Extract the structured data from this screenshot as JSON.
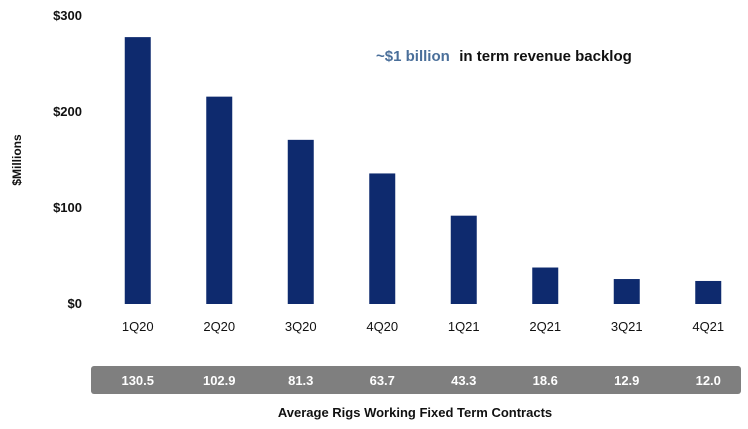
{
  "chart_data": {
    "type": "bar",
    "categories": [
      "1Q20",
      "2Q20",
      "3Q20",
      "4Q20",
      "1Q21",
      "2Q21",
      "3Q21",
      "4Q21"
    ],
    "values": [
      278,
      216,
      171,
      136,
      92,
      38,
      26,
      24
    ],
    "ylabel": "$Millions",
    "ylim": [
      0,
      300
    ],
    "yticks": [
      "$0",
      "$100",
      "$200",
      "$300"
    ],
    "ytick_values": [
      0,
      100,
      200,
      300
    ],
    "bar_color": "#0e2a6e",
    "grid": false,
    "annotation": {
      "highlight": "~$1 billion",
      "rest": "in term revenue backlog",
      "highlight_color": "#4a6f9a"
    },
    "rigs_band": {
      "values": [
        "130.5",
        "102.9",
        "81.3",
        "63.7",
        "43.3",
        "18.6",
        "12.9",
        "12.0"
      ],
      "title": "Average Rigs Working Fixed Term Contracts",
      "band_color": "#7f7f7f"
    }
  }
}
